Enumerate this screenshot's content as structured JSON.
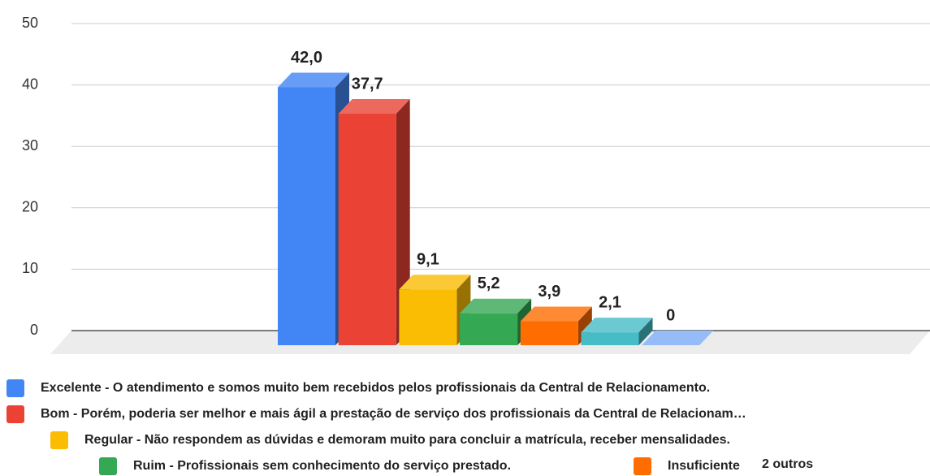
{
  "chart_data": {
    "type": "bar3d",
    "ylim": [
      0,
      50
    ],
    "yticks": [
      0,
      10,
      20,
      30,
      40,
      50
    ],
    "grid": true,
    "series": [
      {
        "name": "Excelente - O atendimento e somos muito bem recebidos pelos profissionais da Central de Relacionamento.",
        "color": "#4285f4",
        "values": [
          42.0
        ],
        "value_labels": [
          "42,0"
        ]
      },
      {
        "name": "Bom - Porém, poderia ser melhor e mais ágil a prestação de serviço dos profissionais da Central de Relacionam…",
        "color": "#ea4335",
        "values": [
          37.7
        ],
        "value_labels": [
          "37,7"
        ]
      },
      {
        "name": "Regular - Não respondem as dúvidas e demoram muito para concluir a matrícula, receber mensalidades.",
        "color": "#fbbc04",
        "values": [
          9.1
        ],
        "value_labels": [
          "9,1"
        ]
      },
      {
        "name": "Ruim - Profissionais sem conhecimento do serviço prestado.",
        "color": "#34a853",
        "values": [
          5.2
        ],
        "value_labels": [
          "5,2"
        ]
      },
      {
        "name": "Insuficiente",
        "color": "#ff6d01",
        "values": [
          3.9
        ],
        "value_labels": [
          "3,9"
        ]
      },
      {
        "color": "#46bdc6",
        "values": [
          2.1
        ],
        "value_labels": [
          "2,1"
        ]
      },
      {
        "color": "#7baaf7",
        "values": [
          0
        ],
        "value_labels": [
          "0"
        ]
      }
    ],
    "legend_more": "2 outros"
  }
}
